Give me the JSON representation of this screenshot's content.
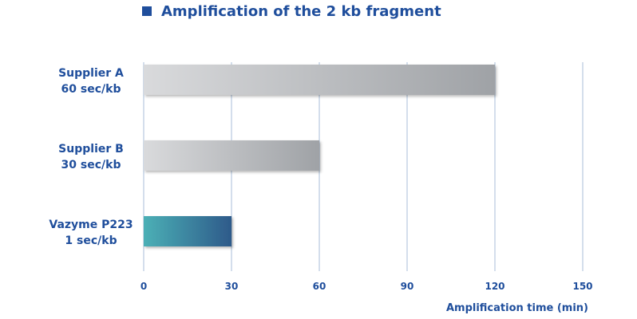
{
  "chart_data": {
    "type": "bar",
    "orientation": "horizontal",
    "title": "Amplification of the 2 kb fragment",
    "xlabel": "Amplification time (min)",
    "ylabel": "",
    "xlim": [
      0,
      150
    ],
    "xticks": [
      0,
      30,
      60,
      90,
      120,
      150
    ],
    "grid": true,
    "categories": [
      [
        "Supplier A",
        "60 sec/kb"
      ],
      [
        "Supplier B",
        "30 sec/kb"
      ],
      [
        "Vazyme P223",
        "1 sec/kb"
      ]
    ],
    "values": [
      120,
      60,
      30
    ],
    "bar_styles": [
      "gray",
      "gray",
      "teal-blue"
    ]
  },
  "colors": {
    "text": "#1f4e9c",
    "title_marker": "#1f4e9c",
    "grid": "#c5d4e6",
    "gray_start": "#d9dadc",
    "gray_end": "#9fa2a6",
    "teal_start": "#4bb0b6",
    "teal_end": "#2e5a8a"
  }
}
